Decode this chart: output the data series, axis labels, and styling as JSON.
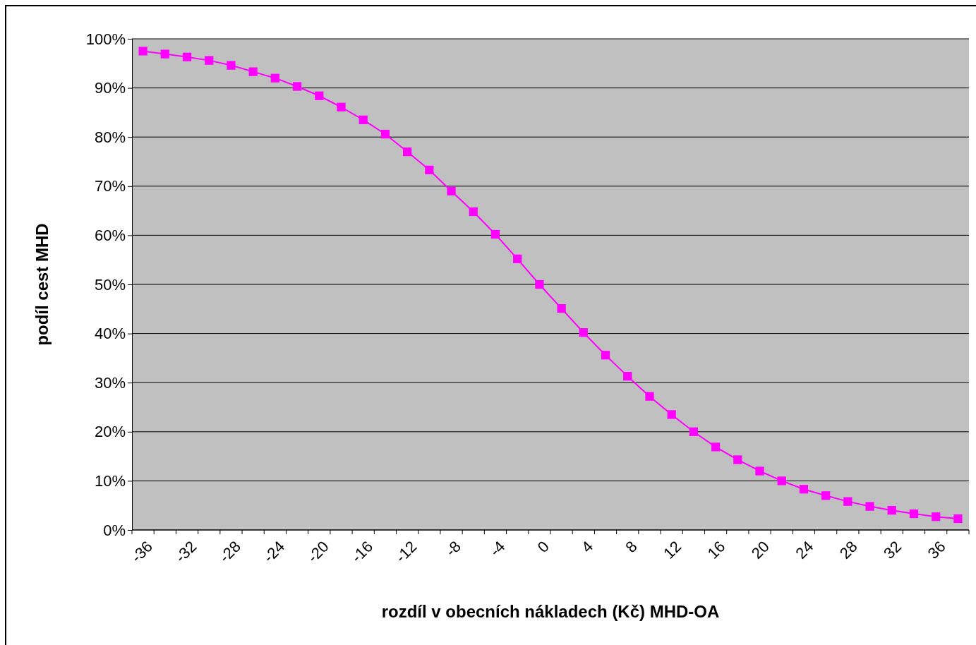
{
  "chart_data": {
    "type": "line",
    "xlabel": "rozdíl v obecních nákladech (Kč) MHD-OA",
    "ylabel": "podíl cest MHD",
    "categories": [
      "-36",
      null,
      "-32",
      null,
      "-28",
      null,
      "-24",
      null,
      "-20",
      null,
      "-16",
      null,
      "-12",
      null,
      "-8",
      null,
      "-4",
      null,
      "0",
      null,
      "4",
      null,
      "8",
      null,
      "12",
      null,
      "16",
      null,
      "20",
      null,
      "24",
      null,
      "28",
      null,
      "32",
      null,
      "36",
      null
    ],
    "series": [
      {
        "color": "#ff00ff",
        "values": [
          97.5,
          96.9,
          96.3,
          95.6,
          94.6,
          93.3,
          92.0,
          90.3,
          88.4,
          86.1,
          83.5,
          80.6,
          77.0,
          73.3,
          69.0,
          64.8,
          60.2,
          55.2,
          50.0,
          45.1,
          40.2,
          35.6,
          31.3,
          27.2,
          23.5,
          20.0,
          16.9,
          14.3,
          12.0,
          10.0,
          8.3,
          7.0,
          5.8,
          4.8,
          4.0,
          3.3,
          2.7,
          2.3
        ]
      }
    ],
    "ylim": [
      0,
      100
    ],
    "yticks": [
      {
        "value": 0,
        "label": "0%"
      },
      {
        "value": 10,
        "label": "10%"
      },
      {
        "value": 20,
        "label": "20%"
      },
      {
        "value": 30,
        "label": "30%"
      },
      {
        "value": 40,
        "label": "40%"
      },
      {
        "value": 50,
        "label": "50%"
      },
      {
        "value": 60,
        "label": "60%"
      },
      {
        "value": 70,
        "label": "70%"
      },
      {
        "value": 80,
        "label": "80%"
      },
      {
        "value": 90,
        "label": "90%"
      },
      {
        "value": 100,
        "label": "100%"
      }
    ],
    "grid": "y",
    "marker": "square",
    "line_style": "solid"
  }
}
